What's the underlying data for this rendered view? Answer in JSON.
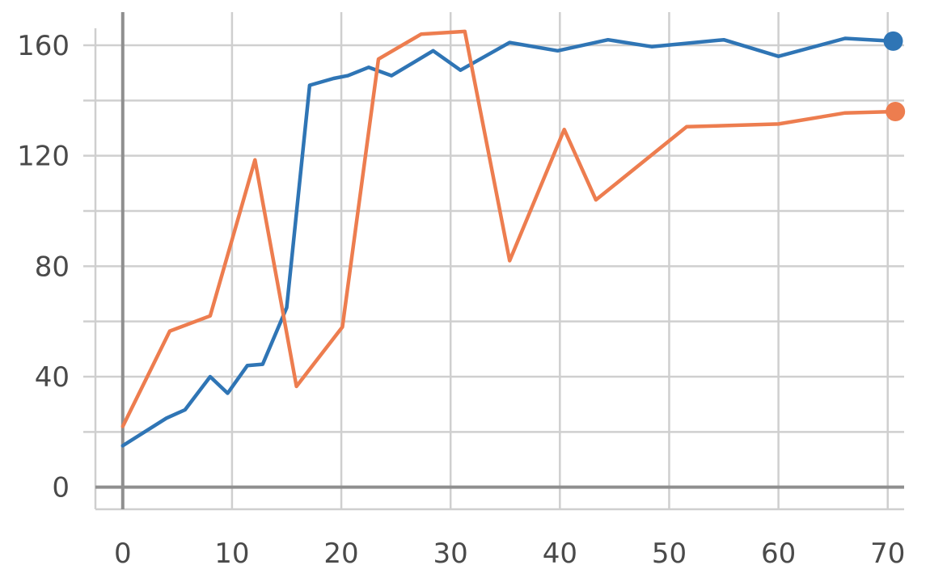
{
  "chart_data": {
    "type": "line",
    "title": "",
    "xlabel": "",
    "ylabel": "",
    "xlim": [
      -2.5,
      71.5
    ],
    "ylim": [
      -8,
      172
    ],
    "x_ticks": [
      0,
      10,
      20,
      30,
      40,
      50,
      60,
      70
    ],
    "y_ticks": [
      0,
      40,
      80,
      120,
      160
    ],
    "y_minor_ticks": [
      20,
      60,
      100,
      140
    ],
    "grid": true,
    "legend": "none",
    "series": [
      {
        "color": "#2f75b5",
        "end_marker": true,
        "x": [
          0,
          4,
          5.7,
          8,
          9.6,
          11.4,
          12.8,
          15,
          17.1,
          19.3,
          20.6,
          22.5,
          24.6,
          28.4,
          30.9,
          35.4,
          39.8,
          44.4,
          48.4,
          55,
          60,
          66.1,
          70.5
        ],
        "y": [
          15,
          25,
          28,
          40,
          34,
          44,
          44.5,
          65,
          145.5,
          148,
          149,
          152,
          149,
          158,
          151,
          161,
          158,
          162,
          159.5,
          162,
          156,
          162.5,
          161.5
        ]
      },
      {
        "color": "#ed7d4f",
        "end_marker": true,
        "x": [
          0,
          4.3,
          8,
          12.1,
          15.9,
          20.1,
          23.4,
          27.3,
          31.3,
          35.4,
          40.4,
          43.3,
          51.6,
          60,
          66.1,
          70.7
        ],
        "y": [
          22,
          56.5,
          62,
          118.5,
          36.5,
          58,
          155,
          164,
          165,
          82,
          129.5,
          104,
          130.5,
          131.5,
          135.5,
          136
        ]
      }
    ]
  }
}
